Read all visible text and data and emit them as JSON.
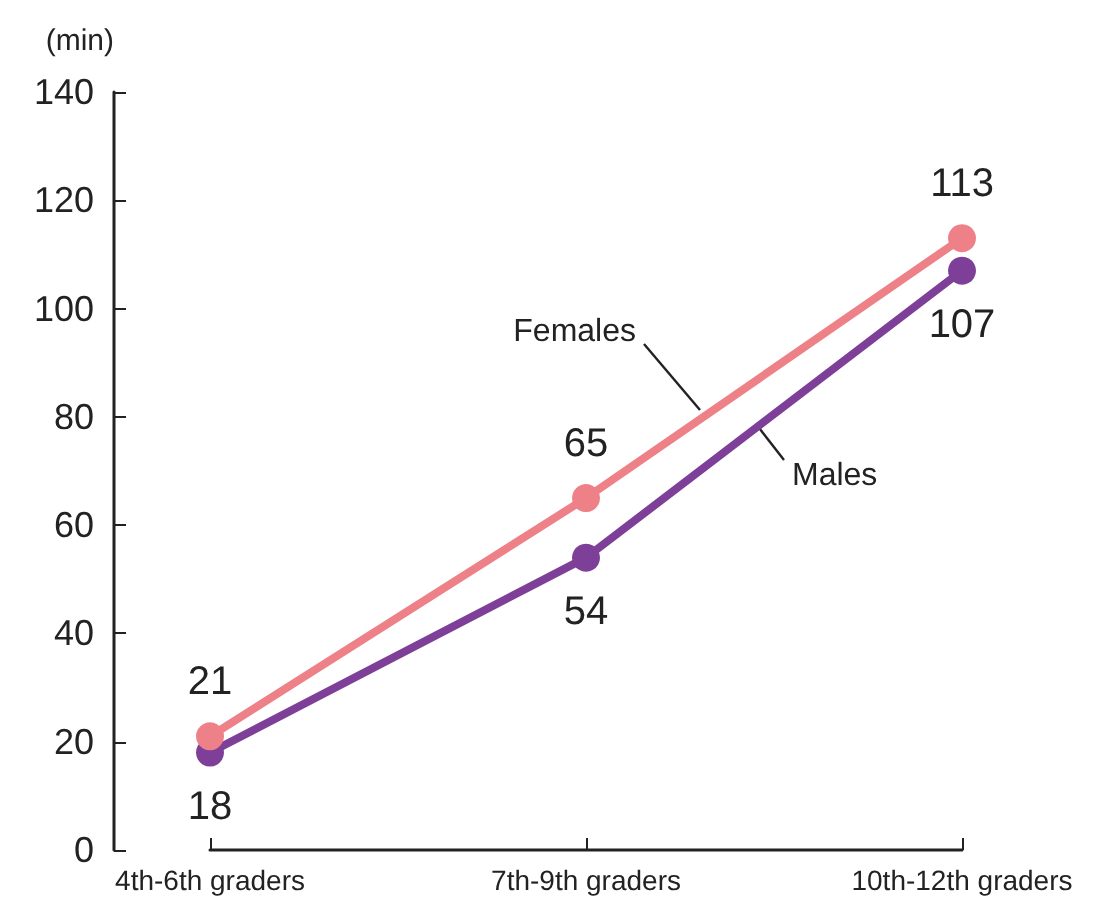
{
  "chart_data": {
    "type": "line",
    "ylabel": "(min)",
    "categories": [
      "4th-6th graders",
      "7th-9th graders",
      "10th-12th graders"
    ],
    "series": [
      {
        "name": "Females",
        "color": "#ee8087",
        "values": [
          21,
          65,
          113
        ]
      },
      {
        "name": "Males",
        "color": "#7e3f98",
        "values": [
          18,
          54,
          107
        ]
      }
    ],
    "ylim": [
      0,
      140
    ],
    "yticks": [
      0,
      20,
      40,
      60,
      80,
      100,
      120,
      140
    ],
    "data_labels": true,
    "marker": "circle",
    "line_style": "solid",
    "grid": false,
    "legend": false
  }
}
